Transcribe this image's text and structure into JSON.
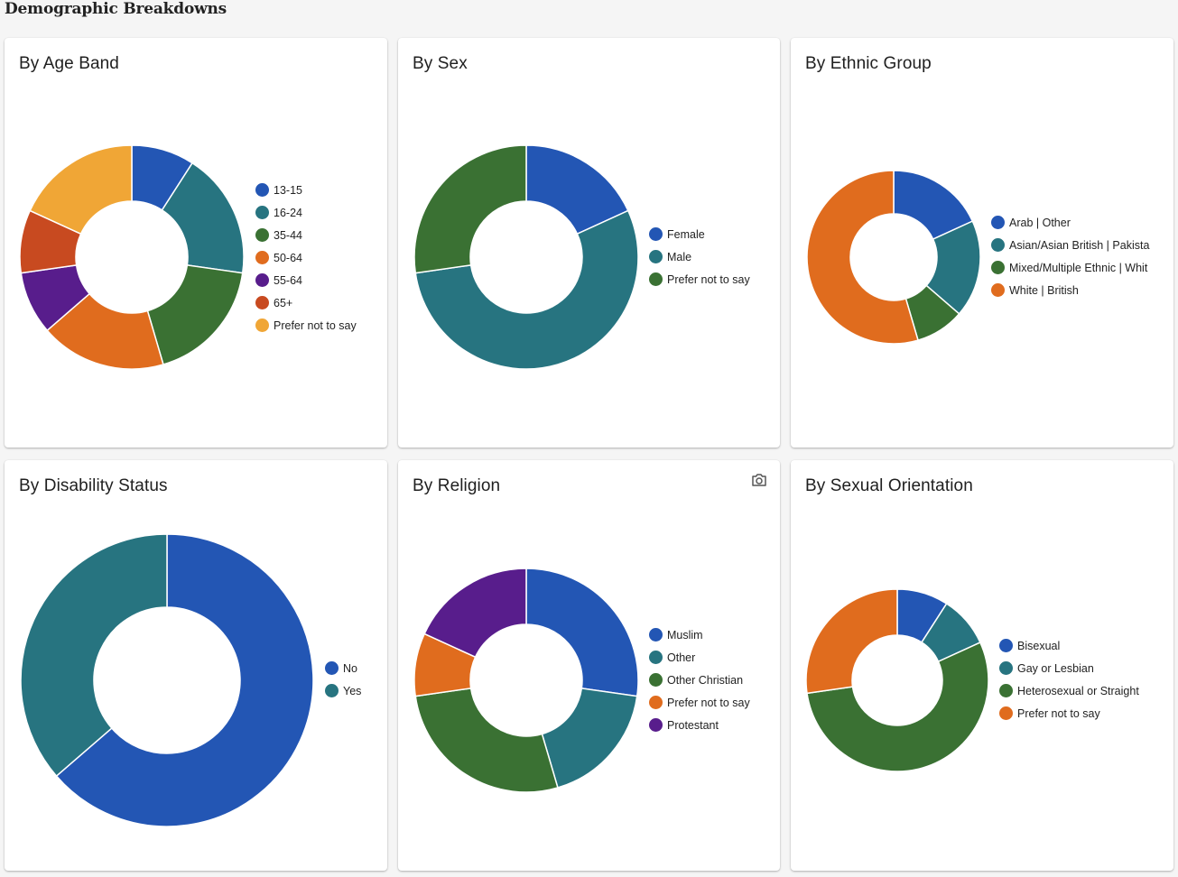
{
  "page": {
    "title": "Demographic Breakdowns"
  },
  "palette": {
    "blue": "#2356b4",
    "teal": "#277480",
    "green": "#3a7133",
    "orange": "#e06c1e",
    "purple": "#581d8c",
    "red": "#c84a20",
    "amber": "#f0a636"
  },
  "toolbar": {
    "camera_icon": "camera-icon"
  },
  "chart_data": [
    {
      "id": "age",
      "type": "pie",
      "donut": true,
      "title": "By Age Band",
      "categories": [
        "13-15",
        "16-24",
        "35-44",
        "50-64",
        "55-64",
        "65+",
        "Prefer not to say"
      ],
      "values": [
        1,
        2,
        2,
        2,
        1,
        1,
        2
      ],
      "colors": [
        "#2356b4",
        "#277480",
        "#3a7133",
        "#e06c1e",
        "#581d8c",
        "#c84a20",
        "#f0a636"
      ],
      "legend": "right"
    },
    {
      "id": "sex",
      "type": "pie",
      "donut": true,
      "title": "By Sex",
      "categories": [
        "Female",
        "Male",
        "Prefer not to say"
      ],
      "values": [
        2,
        6,
        3
      ],
      "colors": [
        "#2356b4",
        "#277480",
        "#3a7133"
      ],
      "legend": "right"
    },
    {
      "id": "ethnic",
      "type": "pie",
      "donut": true,
      "title": "By Ethnic Group",
      "categories": [
        "Arab | Other",
        "Asian/Asian British | Pakista",
        "Mixed/Multiple Ethnic | Whit",
        "White | British"
      ],
      "values": [
        2,
        2,
        1,
        6
      ],
      "colors": [
        "#2356b4",
        "#277480",
        "#3a7133",
        "#e06c1e"
      ],
      "legend": "right"
    },
    {
      "id": "disability",
      "type": "pie",
      "donut": true,
      "title": "By Disability Status",
      "categories": [
        "No",
        "Yes"
      ],
      "values": [
        7,
        4
      ],
      "colors": [
        "#2356b4",
        "#277480"
      ],
      "legend": "right"
    },
    {
      "id": "religion",
      "type": "pie",
      "donut": true,
      "title": "By Religion",
      "categories": [
        "Muslim",
        "Other",
        "Other Christian",
        "Prefer not to say",
        "Protestant"
      ],
      "values": [
        3,
        2,
        3,
        1,
        2
      ],
      "colors": [
        "#2356b4",
        "#277480",
        "#3a7133",
        "#e06c1e",
        "#581d8c"
      ],
      "legend": "right"
    },
    {
      "id": "orientation",
      "type": "pie",
      "donut": true,
      "title": "By Sexual Orientation",
      "categories": [
        "Bisexual",
        "Gay or Lesbian",
        "Heterosexual or Straight",
        "Prefer not to say"
      ],
      "values": [
        1,
        1,
        6,
        3
      ],
      "colors": [
        "#2356b4",
        "#277480",
        "#3a7133",
        "#e06c1e"
      ],
      "legend": "right"
    }
  ]
}
